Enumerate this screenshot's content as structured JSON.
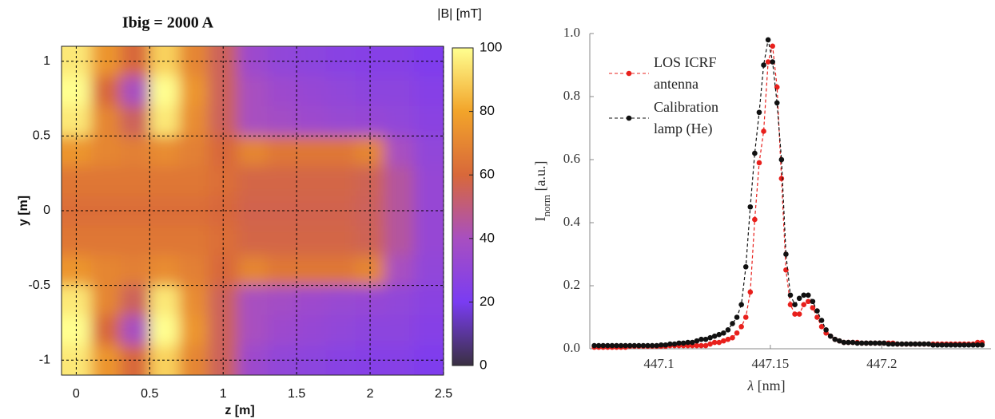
{
  "chart_data": [
    {
      "type": "heatmap",
      "title": "Ibig = 2000 A",
      "xlabel": "z [m]",
      "ylabel": "y [m]",
      "colorbar_label": "|B| [mT]",
      "x": [
        0,
        0.2,
        0.4,
        0.6,
        0.8,
        1.0,
        1.2,
        1.4,
        1.6,
        1.8,
        2.0,
        2.2,
        2.4
      ],
      "y": [
        1.0,
        0.8,
        0.6,
        0.4,
        0.2,
        0,
        -0.2,
        -0.4,
        -0.6,
        -0.8,
        -1.0
      ],
      "z": [
        [
          95,
          75,
          60,
          90,
          70,
          55,
          35,
          30,
          28,
          26,
          25,
          25,
          22
        ],
        [
          100,
          60,
          40,
          100,
          75,
          55,
          40,
          35,
          32,
          30,
          28,
          28,
          25
        ],
        [
          95,
          70,
          55,
          95,
          72,
          55,
          40,
          38,
          35,
          33,
          32,
          30,
          27
        ],
        [
          75,
          70,
          68,
          72,
          68,
          60,
          70,
          65,
          65,
          65,
          70,
          40,
          30
        ],
        [
          65,
          65,
          65,
          65,
          65,
          62,
          58,
          58,
          58,
          58,
          56,
          45,
          32
        ],
        [
          62,
          62,
          62,
          62,
          62,
          60,
          57,
          57,
          57,
          57,
          55,
          45,
          32
        ],
        [
          65,
          65,
          65,
          65,
          65,
          62,
          58,
          58,
          58,
          58,
          56,
          45,
          32
        ],
        [
          75,
          70,
          68,
          72,
          68,
          60,
          70,
          65,
          65,
          65,
          70,
          40,
          30
        ],
        [
          95,
          70,
          55,
          95,
          72,
          55,
          40,
          38,
          35,
          33,
          32,
          30,
          27
        ],
        [
          100,
          60,
          40,
          100,
          75,
          55,
          40,
          35,
          32,
          30,
          28,
          28,
          25
        ],
        [
          95,
          75,
          60,
          90,
          70,
          55,
          35,
          30,
          28,
          26,
          25,
          25,
          22
        ]
      ],
      "xlim": [
        -0.1,
        2.5
      ],
      "ylim": [
        -1.1,
        1.1
      ],
      "xticks": [
        0,
        0.5,
        1,
        1.5,
        2,
        2.5
      ],
      "yticks": [
        -1,
        -0.5,
        0,
        0.5,
        1
      ],
      "clim": [
        0,
        100
      ],
      "cticks": [
        0,
        20,
        40,
        60,
        80,
        100
      ],
      "colormap": [
        "#3a3042",
        "#7a3cf2",
        "#a84fc0",
        "#d8683a",
        "#f2a42a",
        "#ffff90"
      ],
      "grid": true
    },
    {
      "type": "line",
      "xlabel": {
        "symbol": "λ",
        "unit": " [nm]"
      },
      "ylabel": {
        "symbol": "I",
        "subscript": "norm",
        "unit": " [a.u.]"
      },
      "legend": "upper left",
      "x": [
        447.071,
        447.073,
        447.075,
        447.077,
        447.079,
        447.081,
        447.083,
        447.085,
        447.087,
        447.089,
        447.091,
        447.093,
        447.095,
        447.097,
        447.099,
        447.101,
        447.103,
        447.105,
        447.107,
        447.109,
        447.111,
        447.113,
        447.115,
        447.117,
        447.119,
        447.121,
        447.123,
        447.125,
        447.127,
        447.129,
        447.131,
        447.133,
        447.135,
        447.137,
        447.139,
        447.141,
        447.143,
        447.145,
        447.147,
        447.149,
        447.151,
        447.153,
        447.155,
        447.157,
        447.159,
        447.161,
        447.163,
        447.165,
        447.167,
        447.169,
        447.171,
        447.173,
        447.175,
        447.177,
        447.179,
        447.181,
        447.183,
        447.185,
        447.187,
        447.189,
        447.191,
        447.193,
        447.195,
        447.197,
        447.199,
        447.201,
        447.203,
        447.205,
        447.207,
        447.209,
        447.211,
        447.213,
        447.215,
        447.217,
        447.219,
        447.221,
        447.223,
        447.225,
        447.227,
        447.229,
        447.231,
        447.233,
        447.235,
        447.237,
        447.239,
        447.241,
        447.243,
        447.245
      ],
      "series": [
        {
          "name": "LOS ICRF antenna",
          "color": "#e8201c",
          "values": [
            0.005,
            0.005,
            0.005,
            0.005,
            0.005,
            0.005,
            0.005,
            0.005,
            0.008,
            0.008,
            0.008,
            0.008,
            0.008,
            0.008,
            0.008,
            0.008,
            0.008,
            0.01,
            0.01,
            0.01,
            0.01,
            0.01,
            0.01,
            0.01,
            0.01,
            0.01,
            0.015,
            0.02,
            0.02,
            0.025,
            0.03,
            0.035,
            0.05,
            0.07,
            0.1,
            0.18,
            0.41,
            0.59,
            0.69,
            0.91,
            0.96,
            0.83,
            0.54,
            0.25,
            0.14,
            0.11,
            0.11,
            0.14,
            0.15,
            0.13,
            0.1,
            0.07,
            0.05,
            0.04,
            0.03,
            0.025,
            0.02,
            0.02,
            0.02,
            0.02,
            0.018,
            0.018,
            0.018,
            0.018,
            0.018,
            0.018,
            0.018,
            0.018,
            0.015,
            0.015,
            0.015,
            0.015,
            0.015,
            0.015,
            0.015,
            0.015,
            0.015,
            0.015,
            0.015,
            0.015,
            0.015,
            0.015,
            0.015,
            0.015,
            0.015,
            0.015,
            0.02,
            0.02
          ]
        },
        {
          "name": "Calibration lamp (He)",
          "color": "#111111",
          "values": [
            0.01,
            0.01,
            0.01,
            0.01,
            0.01,
            0.01,
            0.01,
            0.01,
            0.01,
            0.01,
            0.01,
            0.01,
            0.01,
            0.01,
            0.01,
            0.012,
            0.012,
            0.015,
            0.015,
            0.018,
            0.018,
            0.02,
            0.02,
            0.025,
            0.03,
            0.03,
            0.035,
            0.04,
            0.045,
            0.05,
            0.06,
            0.08,
            0.1,
            0.14,
            0.26,
            0.45,
            0.62,
            0.75,
            0.9,
            0.98,
            0.91,
            0.78,
            0.6,
            0.3,
            0.17,
            0.14,
            0.16,
            0.17,
            0.17,
            0.15,
            0.12,
            0.09,
            0.06,
            0.04,
            0.03,
            0.025,
            0.02,
            0.02,
            0.02,
            0.018,
            0.018,
            0.018,
            0.018,
            0.018,
            0.018,
            0.018,
            0.015,
            0.015,
            0.015,
            0.015,
            0.015,
            0.015,
            0.015,
            0.015,
            0.015,
            0.015,
            0.012,
            0.012,
            0.012,
            0.012,
            0.012,
            0.012,
            0.012,
            0.012,
            0.012,
            0.012,
            0.012,
            0.012
          ]
        }
      ],
      "xlim": [
        447.069,
        447.249
      ],
      "ylim": [
        0,
        1.0
      ],
      "xticks": [
        447.1,
        447.15,
        447.2
      ],
      "yticks": [
        {
          "value": 0,
          "label": "0.0"
        },
        0.2,
        0.4,
        0.6,
        0.8,
        {
          "value": 1.0,
          "label": "1.0"
        }
      ]
    }
  ]
}
